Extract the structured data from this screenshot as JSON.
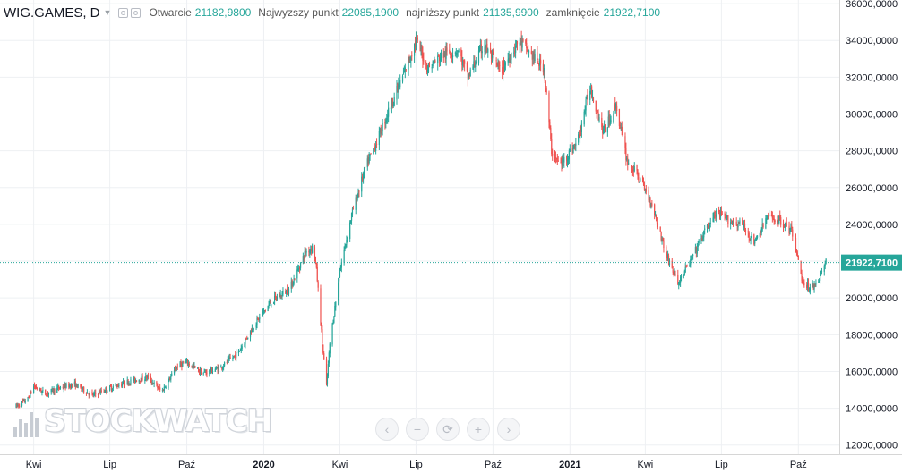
{
  "legend": {
    "symbol": "WIG.GAMES, D",
    "open_label": "Otwarcie",
    "open_value": "21182,9800",
    "high_label": "Najwyzszy punkt",
    "high_value": "22085,1900",
    "low_label": "najniższy punkt",
    "low_value": "21135,9900",
    "close_label": "zamknięcie",
    "close_value": "21922,7100"
  },
  "watermark": "STOCKWATCH",
  "colors": {
    "up": "#26a69a",
    "down": "#ef5350",
    "last_price": "#26a69a",
    "grid": "#eef0f3"
  },
  "chart_data": {
    "type": "candlestick",
    "ylim": [
      11500,
      36200
    ],
    "yticks": [
      "12000,0000",
      "14000,0000",
      "16000,0000",
      "18000,0000",
      "20000,0000",
      "22000,0000",
      "24000,0000",
      "26000,0000",
      "28000,0000",
      "30000,0000",
      "32000,0000",
      "34000,0000",
      "36000,0000"
    ],
    "ytick_values": [
      12000,
      14000,
      16000,
      18000,
      20000,
      22000,
      24000,
      26000,
      28000,
      30000,
      32000,
      34000,
      36000
    ],
    "last_price": 21922.71,
    "last_price_label": "21922,7100",
    "xticks": [
      "Kwi",
      "Lip",
      "Paź",
      "2020",
      "Kwi",
      "Lip",
      "Paź",
      "2021",
      "Kwi",
      "Lip",
      "Paź"
    ],
    "xtick_dates": [
      "2019-04-01",
      "2019-07-01",
      "2019-10-01",
      "2020-01-01",
      "2020-04-01",
      "2020-07-01",
      "2020-10-01",
      "2021-01-01",
      "2021-04-01",
      "2021-07-01",
      "2021-10-01"
    ],
    "close_path": [
      [
        "2019-03-11",
        14100
      ],
      [
        "2019-03-25",
        14500
      ],
      [
        "2019-04-01",
        15200
      ],
      [
        "2019-04-15",
        14800
      ],
      [
        "2019-05-01",
        15100
      ],
      [
        "2019-05-20",
        15300
      ],
      [
        "2019-06-10",
        14700
      ],
      [
        "2019-07-01",
        15100
      ],
      [
        "2019-07-20",
        15400
      ],
      [
        "2019-08-15",
        15700
      ],
      [
        "2019-09-01",
        14900
      ],
      [
        "2019-09-20",
        16300
      ],
      [
        "2019-10-01",
        16500
      ],
      [
        "2019-10-20",
        15900
      ],
      [
        "2019-11-10",
        16200
      ],
      [
        "2019-12-01",
        17000
      ],
      [
        "2019-12-20",
        18500
      ],
      [
        "2020-01-10",
        19800
      ],
      [
        "2020-02-01",
        20500
      ],
      [
        "2020-02-20",
        22500
      ],
      [
        "2020-03-01",
        22800
      ],
      [
        "2020-03-05",
        21000
      ],
      [
        "2020-03-12",
        17000
      ],
      [
        "2020-03-16",
        15200
      ],
      [
        "2020-03-20",
        17500
      ],
      [
        "2020-04-01",
        21500
      ],
      [
        "2020-04-15",
        24500
      ],
      [
        "2020-05-01",
        27000
      ],
      [
        "2020-05-15",
        28500
      ],
      [
        "2020-06-01",
        30500
      ],
      [
        "2020-06-15",
        32000
      ],
      [
        "2020-07-01",
        34000
      ],
      [
        "2020-07-15",
        32500
      ],
      [
        "2020-08-01",
        33200
      ],
      [
        "2020-08-20",
        33500
      ],
      [
        "2020-09-01",
        32000
      ],
      [
        "2020-09-20",
        33800
      ],
      [
        "2020-10-10",
        32300
      ],
      [
        "2020-11-01",
        34000
      ],
      [
        "2020-11-20",
        33000
      ],
      [
        "2020-12-01",
        32500
      ],
      [
        "2020-12-10",
        28000
      ],
      [
        "2020-12-20",
        27200
      ],
      [
        "2021-01-10",
        28500
      ],
      [
        "2021-01-25",
        31500
      ],
      [
        "2021-02-10",
        29000
      ],
      [
        "2021-02-25",
        30500
      ],
      [
        "2021-03-10",
        27500
      ],
      [
        "2021-03-25",
        26500
      ],
      [
        "2021-04-10",
        25000
      ],
      [
        "2021-04-25",
        22500
      ],
      [
        "2021-05-10",
        20800
      ],
      [
        "2021-05-25",
        22000
      ],
      [
        "2021-06-10",
        23500
      ],
      [
        "2021-06-25",
        24600
      ],
      [
        "2021-07-10",
        24200
      ],
      [
        "2021-07-25",
        24000
      ],
      [
        "2021-08-10",
        23000
      ],
      [
        "2021-08-25",
        24400
      ],
      [
        "2021-09-10",
        24200
      ],
      [
        "2021-09-25",
        23500
      ],
      [
        "2021-10-05",
        21000
      ],
      [
        "2021-10-15",
        20500
      ],
      [
        "2021-10-25",
        21000
      ],
      [
        "2021-11-03",
        21922.71
      ]
    ]
  },
  "nav_buttons": [
    "‹",
    "−",
    "⟳",
    "+",
    "›"
  ]
}
